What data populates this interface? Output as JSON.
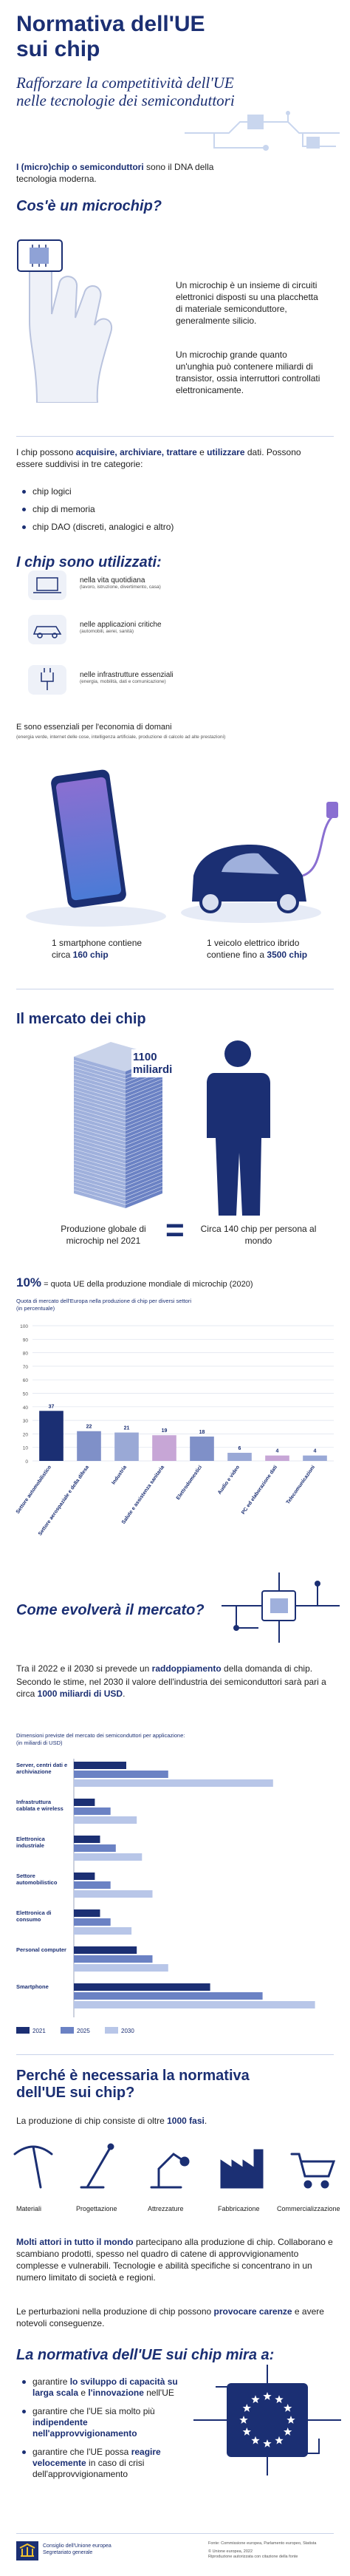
{
  "header": {
    "title": "Normativa dell'UE sui chip",
    "subtitle": "Rafforzare la competitività dell'UE nelle tecnologie dei semiconduttori"
  },
  "intro": [
    {
      "bold": "I (micro)chip o semiconduttori"
    },
    " sono il DNA della tecnologia moderna."
  ],
  "what": {
    "heading": "Cos'è un microchip?",
    "paragraphs": [
      "Un microchip è un insieme di circuiti elettronici disposti su una placchetta di materiale semiconduttore, generalmente silicio.",
      "Un microchip grande quanto un'unghia può contenere miliardi di transistor, ossia interruttori controllati elettronicamente."
    ]
  },
  "functions": {
    "text": [
      "I chip possono ",
      {
        "bold": "acquisire, archiviare, trattare"
      },
      " e ",
      {
        "bold": "utilizzare"
      },
      " dati. Possono essere suddivisi in tre categorie:"
    ],
    "categories": [
      "chip logici",
      "chip di memoria",
      "chip DAO (discreti, analogici e altro)"
    ]
  },
  "uses": {
    "heading": "I chip sono utilizzati:",
    "items": [
      {
        "label": "nella vita quotidiana",
        "detail": "(lavoro, istruzione, divertimento, casa)"
      },
      {
        "label": "nelle applicazioni critiche",
        "detail": "(automobili, aerei, sanità)"
      },
      {
        "label": "nelle infrastrutture essenziali",
        "detail": "(energia, mobilità, dati e comunicazione)"
      }
    ]
  },
  "future": {
    "text": "E sono essenziali per l'economia di domani",
    "detail": "(energia verde, internet delle cose, intelligenza artificiale, produzione di calcolo ad alte prestazioni)"
  },
  "examples": [
    [
      "1 smartphone contiene circa ",
      {
        "bold": "160 chip"
      }
    ],
    [
      "1 veicolo elettrico ibrido contiene fino a ",
      {
        "bold": "3500 chip"
      }
    ]
  ],
  "market": {
    "heading": "Il mercato dei chip",
    "production_value": "1100 miliardi",
    "production_label": "Produzione globale di microchip nel 2021",
    "equals": "=",
    "per_person": "Circa 140 chip per persona al mondo",
    "eu_share_value": "10%",
    "eu_share_label": "= quota UE della produzione mondiale di microchip (2020)"
  },
  "chart_data": [
    {
      "type": "bar",
      "title": "Quota di mercato dell'Europa nella produzione di chip per diversi settori",
      "subtitle": "(in percentuale)",
      "categories": [
        "Settore automobilistico",
        "Settore aerospaziale e della difesa",
        "Industria",
        "Salute e assistenza sanitaria",
        "Elettrodomestici",
        "Audio e video",
        "PC ed elaborazione dati",
        "Telecomunicazioni"
      ],
      "values": [
        37,
        22,
        21,
        19,
        18,
        6,
        4,
        4
      ],
      "colors": [
        "#1b2f73",
        "#7f90c8",
        "#9aa9d6",
        "#c7a6d6",
        "#7f90c8",
        "#9aa9d6",
        "#c7a6d6",
        "#9aa9d6"
      ],
      "ylim": [
        0,
        100
      ],
      "yticks": [
        0,
        10,
        20,
        30,
        40,
        50,
        60,
        70,
        80,
        90,
        100
      ],
      "grid": true
    },
    {
      "type": "hbar",
      "title": "Dimensioni previste del mercato dei semiconduttori per applicazione:",
      "subtitle": "(in miliardi di USD)",
      "categories": [
        "Server, centri dati e archiviazione",
        "Infrastruttura cablata e wireless",
        "Elettronica industriale",
        "Settore automobilistico",
        "Elettronica di consumo",
        "Personal computer",
        "Smartphone"
      ],
      "series": [
        {
          "name": "2021",
          "color": "#1b2f73",
          "values": [
            50,
            20,
            25,
            20,
            25,
            60,
            130
          ]
        },
        {
          "name": "2025",
          "color": "#6b82c4",
          "values": [
            90,
            35,
            40,
            35,
            35,
            75,
            180
          ]
        },
        {
          "name": "2030",
          "color": "#b8c6e8",
          "values": [
            190,
            60,
            65,
            75,
            55,
            90,
            230
          ]
        }
      ],
      "xlim": [
        0,
        250
      ]
    }
  ],
  "evolution": {
    "heading": "Come evolverà il mercato?",
    "paragraphs": [
      [
        "Tra il 2022 e il 2030 si prevede un ",
        {
          "bold": "raddoppiamento"
        },
        " della domanda di chip."
      ],
      [
        "Secondo le stime, nel 2030 il valore dell'industria dei semiconduttori sarà pari a circa ",
        {
          "bold": "1000 miliardi di USD"
        },
        "."
      ]
    ]
  },
  "why": {
    "heading": "Perché è necessaria la normativa dell'UE sui chip?",
    "steps_text": [
      "La produzione di chip consiste di oltre ",
      {
        "bold": "1000 fasi"
      },
      "."
    ],
    "steps": [
      "Materiali",
      "Progettazione",
      "Attrezzature",
      "Fabbricazione",
      "Commercializzazione"
    ],
    "actors": [
      {
        "bold": "Molti attori in tutto il mondo"
      },
      " partecipano alla produzione di chip. Collaborano e scambiano prodotti, spesso nel quadro di catene di approvvigionamento complesse e vulnerabili. Tecnologie e abilità specifiche si concentrano in un numero limitato di società e regioni."
    ],
    "disruption": [
      "Le perturbazioni nella produzione di chip possono ",
      {
        "bold": "provocare carenze"
      },
      " e avere notevoli conseguenze."
    ]
  },
  "aims": {
    "heading": "La normativa dell'UE sui chip mira a:",
    "items": [
      [
        "garantire ",
        {
          "bold": "lo sviluppo di capacità su larga scala"
        },
        " e ",
        {
          "bold": "l'innovazione"
        },
        " nell'UE"
      ],
      [
        "garantire che l'UE sia molto più ",
        {
          "bold": "indipendente nell'approvvigionamento"
        }
      ],
      [
        "garantire che l'UE possa ",
        {
          "bold": "reagire velocemente"
        },
        " in caso di crisi dell'approvvigionamento"
      ]
    ]
  },
  "footer": {
    "org": "Consiglio dell'Unione europea",
    "unit": "Segretariato generale",
    "source": "Fonte: Commissione europea, Parlamento europeo, Statista",
    "copyright": "© Unione europea, 2022",
    "reproduction": "Riproduzione autorizzata con citazione della fonte"
  }
}
